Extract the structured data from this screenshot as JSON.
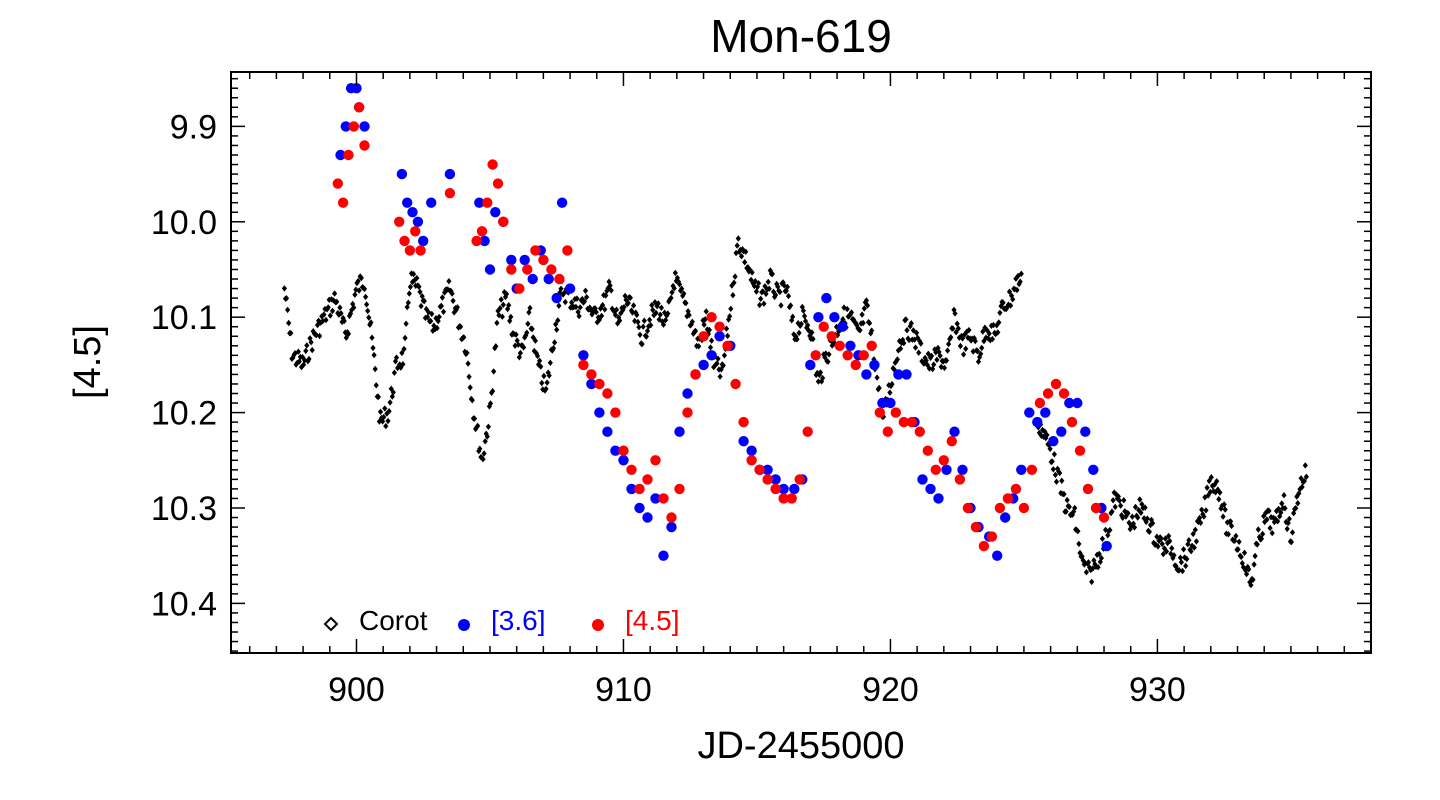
{
  "chart_data": {
    "type": "scatter",
    "title": "Mon-619",
    "xlabel": "JD-2455000",
    "ylabel": "[4.5]",
    "xlim": [
      895.3,
      938
    ],
    "ylim": [
      9.843,
      10.452
    ],
    "y_inverted": true,
    "x_ticks": [
      900,
      910,
      920,
      930
    ],
    "x_tick_labels": [
      "900",
      "910",
      "920",
      "930"
    ],
    "y_ticks": [
      9.9,
      10.0,
      10.1,
      10.2,
      10.3,
      10.4
    ],
    "y_tick_labels": [
      "9.9",
      "10.0",
      "10.1",
      "10.2",
      "10.3",
      "10.4"
    ],
    "legend_position": "bottom-left",
    "colors": {
      "corot": "#000000",
      "ch1": "#0000ff",
      "ch2": "#ff0000",
      "axes": "#000000"
    },
    "legend": [
      {
        "label": "Corot",
        "marker": "open-diamond",
        "color": "#000000"
      },
      {
        "label": "[3.6]",
        "marker": "filled-circle",
        "color": "#0000ff"
      },
      {
        "label": "[4.5]",
        "marker": "filled-circle",
        "color": "#ff0000"
      }
    ],
    "series": [
      {
        "name": "Corot",
        "marker": "diamond",
        "color": "#000000",
        "x": [
          897.3,
          897.6,
          898.0,
          898.4,
          898.8,
          899.2,
          899.6,
          900.0,
          900.3,
          900.6,
          900.9,
          901.2,
          901.5,
          901.8,
          902.0,
          902.3,
          902.6,
          902.9,
          903.2,
          903.5,
          903.8,
          904.1,
          904.4,
          904.7,
          905.0,
          905.3,
          905.6,
          905.9,
          906.2,
          906.5,
          906.8,
          907.1,
          907.4,
          907.7,
          908.0,
          908.3,
          908.6,
          908.9,
          909.2,
          909.5,
          909.8,
          910.1,
          910.4,
          910.7,
          911.0,
          911.3,
          911.6,
          911.9,
          912.2,
          912.5,
          912.8,
          913.1,
          913.4,
          913.7,
          914.0,
          914.3,
          914.6,
          914.9,
          915.2,
          915.5,
          915.8,
          916.1,
          916.4,
          916.7,
          917.0,
          917.3,
          917.6,
          917.9,
          918.2,
          918.5,
          918.8,
          919.1,
          919.4,
          919.7,
          920.0,
          920.3,
          920.6,
          920.9,
          921.2,
          921.5,
          921.8,
          922.1,
          922.4,
          922.7,
          923.0,
          923.3,
          923.6,
          923.9,
          924.2,
          924.5,
          924.8,
          925.1,
          925.4,
          925.7,
          926.0,
          926.3,
          926.6,
          926.9,
          927.2,
          927.5,
          927.8,
          928.1,
          928.4,
          928.7,
          929.0,
          929.3,
          929.6,
          929.9,
          930.2,
          930.5,
          930.8,
          931.1,
          931.4,
          931.7,
          932.0,
          932.3,
          932.6,
          932.9,
          933.2,
          933.5,
          933.8,
          934.1,
          934.4,
          934.7,
          935.0,
          935.3,
          935.6
        ],
        "y": [
          10.07,
          10.14,
          10.15,
          10.12,
          10.1,
          10.08,
          10.12,
          10.07,
          10.06,
          10.13,
          10.21,
          10.2,
          10.15,
          10.14,
          10.06,
          10.07,
          10.1,
          10.11,
          10.09,
          10.07,
          10.1,
          10.13,
          10.2,
          10.25,
          10.2,
          10.1,
          10.08,
          10.12,
          10.14,
          10.1,
          10.15,
          10.18,
          10.12,
          10.07,
          10.08,
          10.09,
          10.08,
          10.1,
          10.09,
          10.07,
          10.11,
          10.08,
          10.1,
          10.12,
          10.1,
          10.09,
          10.11,
          10.06,
          10.08,
          10.1,
          10.13,
          10.1,
          10.15,
          10.16,
          10.09,
          10.02,
          10.04,
          10.07,
          10.08,
          10.06,
          10.08,
          10.07,
          10.12,
          10.1,
          10.11,
          10.17,
          10.14,
          10.12,
          10.1,
          10.1,
          10.12,
          10.09,
          10.14,
          10.21,
          10.17,
          10.13,
          10.11,
          10.12,
          10.14,
          10.15,
          10.14,
          10.15,
          10.1,
          10.13,
          10.12,
          10.14,
          10.11,
          10.12,
          10.09,
          10.08,
          10.06,
          10.07,
          10.2,
          10.22,
          10.24,
          10.27,
          10.3,
          10.31,
          10.36,
          10.37,
          10.35,
          10.33,
          10.29,
          10.3,
          10.32,
          10.3,
          10.31,
          10.33,
          10.34,
          10.34,
          10.36,
          10.35,
          10.33,
          10.31,
          10.27,
          10.28,
          10.32,
          10.33,
          10.35,
          10.38,
          10.33,
          10.31,
          10.32,
          10.29,
          10.33,
          10.28,
          10.26
        ],
        "x_fine_start": 897.3,
        "x_fine_end": 935.6,
        "gap": [
          924.9,
          925.5
        ]
      },
      {
        "name": "[3.6]",
        "marker": "circle",
        "color": "#0000ff",
        "x": [
          899.4,
          899.6,
          899.8,
          900.0,
          900.1,
          900.3,
          901.7,
          901.9,
          902.1,
          902.3,
          902.5,
          902.8,
          903.5,
          904.6,
          904.8,
          905.0,
          905.2,
          905.5,
          905.8,
          906.0,
          906.3,
          906.6,
          906.9,
          907.2,
          907.5,
          907.7,
          908.0,
          908.5,
          908.8,
          909.1,
          909.4,
          909.7,
          910.0,
          910.3,
          910.6,
          910.9,
          911.2,
          911.5,
          911.8,
          912.1,
          912.4,
          912.7,
          913.0,
          913.3,
          913.6,
          914.0,
          914.5,
          914.8,
          915.1,
          915.4,
          915.7,
          916.0,
          916.4,
          916.7,
          917.0,
          917.3,
          917.6,
          917.9,
          918.2,
          918.5,
          918.8,
          919.1,
          919.4,
          919.7,
          920.0,
          920.3,
          920.6,
          920.9,
          921.2,
          921.5,
          921.8,
          922.1,
          922.4,
          922.7,
          923.0,
          923.3,
          923.7,
          924.0,
          924.3,
          924.6,
          924.9,
          925.2,
          925.5,
          925.8,
          926.1,
          926.4,
          926.7,
          927.0,
          927.3,
          927.6,
          927.9,
          928.1
        ],
        "y": [
          9.93,
          9.9,
          9.86,
          9.86,
          9.88,
          9.9,
          9.95,
          9.98,
          9.99,
          10.0,
          10.02,
          9.98,
          9.95,
          9.98,
          10.02,
          10.05,
          9.99,
          10.0,
          10.04,
          10.07,
          10.04,
          10.06,
          10.03,
          10.06,
          10.08,
          9.98,
          10.07,
          10.14,
          10.17,
          10.2,
          10.22,
          10.24,
          10.25,
          10.28,
          10.3,
          10.31,
          10.29,
          10.35,
          10.32,
          10.22,
          10.18,
          10.16,
          10.15,
          10.14,
          10.12,
          10.13,
          10.23,
          10.24,
          10.26,
          10.26,
          10.27,
          10.28,
          10.28,
          10.27,
          10.15,
          10.1,
          10.08,
          10.1,
          10.11,
          10.13,
          10.14,
          10.16,
          10.15,
          10.19,
          10.19,
          10.16,
          10.16,
          10.21,
          10.27,
          10.28,
          10.29,
          10.26,
          10.22,
          10.26,
          10.3,
          10.32,
          10.33,
          10.35,
          10.31,
          10.29,
          10.26,
          10.2,
          10.21,
          10.2,
          10.23,
          10.22,
          10.19,
          10.19,
          10.22,
          10.26,
          10.3,
          10.34
        ]
      },
      {
        "name": "[4.5]",
        "marker": "circle",
        "color": "#ff0000",
        "x": [
          899.3,
          899.5,
          899.7,
          899.9,
          900.1,
          900.3,
          901.6,
          901.8,
          902.0,
          902.2,
          902.4,
          903.5,
          904.5,
          904.7,
          904.9,
          905.1,
          905.3,
          905.5,
          905.8,
          906.1,
          906.4,
          906.7,
          907.0,
          907.3,
          907.6,
          907.9,
          908.5,
          908.8,
          909.1,
          909.4,
          909.7,
          910.0,
          910.3,
          910.6,
          910.9,
          911.2,
          911.5,
          911.8,
          912.1,
          912.4,
          912.7,
          913.0,
          913.3,
          913.6,
          913.9,
          914.2,
          914.5,
          914.8,
          915.1,
          915.4,
          915.7,
          916.0,
          916.3,
          916.6,
          916.9,
          917.2,
          917.5,
          917.8,
          918.1,
          918.4,
          918.7,
          919.0,
          919.3,
          919.6,
          919.9,
          920.2,
          920.5,
          920.8,
          921.1,
          921.4,
          921.7,
          922.0,
          922.3,
          922.6,
          922.9,
          923.2,
          923.5,
          923.8,
          924.1,
          924.4,
          924.7,
          925.0,
          925.3,
          925.6,
          925.9,
          926.2,
          926.5,
          926.8,
          927.1,
          927.4,
          927.7,
          928.0
        ],
        "y": [
          9.96,
          9.98,
          9.93,
          9.9,
          9.88,
          9.92,
          10.0,
          10.02,
          10.03,
          10.01,
          10.03,
          9.97,
          10.02,
          10.01,
          9.98,
          9.94,
          9.96,
          10.0,
          10.05,
          10.07,
          10.05,
          10.03,
          10.04,
          10.05,
          10.06,
          10.03,
          10.15,
          10.16,
          10.17,
          10.18,
          10.2,
          10.24,
          10.26,
          10.28,
          10.27,
          10.25,
          10.29,
          10.31,
          10.28,
          10.2,
          10.16,
          10.12,
          10.1,
          10.11,
          10.13,
          10.17,
          10.21,
          10.25,
          10.26,
          10.27,
          10.28,
          10.29,
          10.29,
          10.27,
          10.22,
          10.14,
          10.11,
          10.12,
          10.13,
          10.14,
          10.15,
          10.14,
          10.13,
          10.2,
          10.22,
          10.2,
          10.21,
          10.21,
          10.22,
          10.24,
          10.26,
          10.25,
          10.23,
          10.27,
          10.3,
          10.32,
          10.34,
          10.33,
          10.3,
          10.29,
          10.28,
          10.3,
          10.26,
          10.19,
          10.18,
          10.17,
          10.18,
          10.21,
          10.24,
          10.28,
          10.3,
          10.31
        ]
      }
    ]
  }
}
